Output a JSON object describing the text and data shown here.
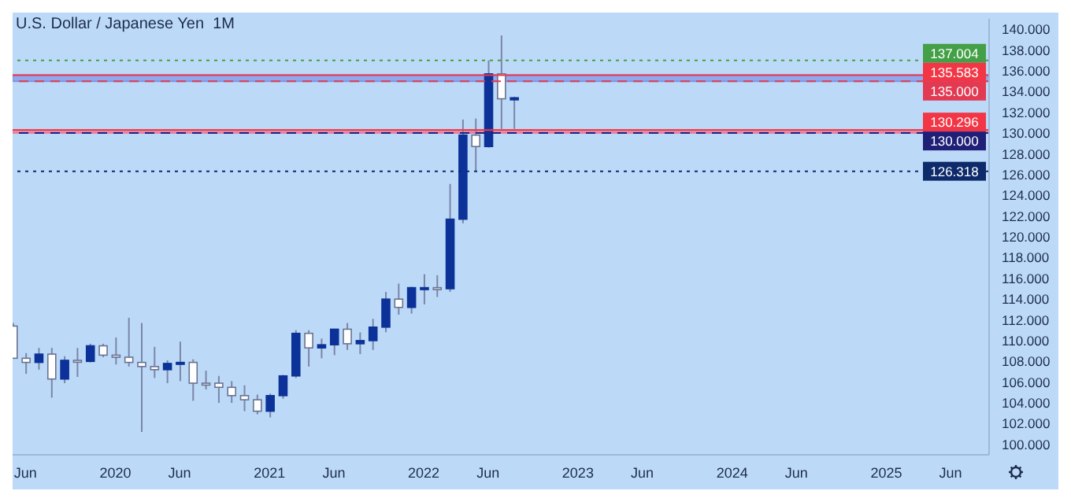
{
  "chart_data": {
    "type": "candlestick",
    "title": "U.S. Dollar / Japanese Yen  1M",
    "x": [
      "2019-05",
      "2019-06",
      "2019-07",
      "2019-08",
      "2019-09",
      "2019-10",
      "2019-11",
      "2019-12",
      "2020-01",
      "2020-02",
      "2020-03",
      "2020-04",
      "2020-05",
      "2020-06",
      "2020-07",
      "2020-08",
      "2020-09",
      "2020-10",
      "2020-11",
      "2020-12",
      "2021-01",
      "2021-02",
      "2021-03",
      "2021-04",
      "2021-05",
      "2021-06",
      "2021-07",
      "2021-08",
      "2021-09",
      "2021-10",
      "2021-11",
      "2021-12",
      "2022-01",
      "2022-02",
      "2022-03",
      "2022-04",
      "2022-05",
      "2022-06",
      "2022-07",
      "2022-08"
    ],
    "ohlc": [
      [
        111.4,
        111.7,
        108.3,
        108.3
      ],
      [
        108.3,
        108.8,
        106.8,
        107.9
      ],
      [
        107.9,
        109.3,
        107.2,
        108.7
      ],
      [
        108.7,
        109.3,
        104.5,
        106.3
      ],
      [
        106.3,
        108.5,
        105.9,
        108.1
      ],
      [
        108.1,
        109.3,
        106.5,
        108.0
      ],
      [
        108.0,
        109.7,
        107.9,
        109.5
      ],
      [
        109.5,
        109.7,
        108.4,
        108.6
      ],
      [
        108.6,
        110.3,
        107.7,
        108.4
      ],
      [
        108.4,
        112.2,
        107.5,
        107.9
      ],
      [
        107.9,
        111.7,
        101.2,
        107.5
      ],
      [
        107.5,
        109.4,
        106.4,
        107.2
      ],
      [
        107.2,
        108.1,
        105.9,
        107.8
      ],
      [
        107.8,
        109.9,
        106.1,
        107.9
      ],
      [
        107.9,
        108.2,
        104.2,
        105.9
      ],
      [
        105.9,
        107.1,
        105.3,
        105.9
      ],
      [
        105.9,
        106.6,
        104.0,
        105.5
      ],
      [
        105.5,
        106.1,
        104.0,
        104.7
      ],
      [
        104.7,
        105.7,
        103.2,
        104.3
      ],
      [
        104.3,
        104.8,
        102.9,
        103.2
      ],
      [
        103.2,
        104.9,
        102.6,
        104.7
      ],
      [
        104.7,
        106.7,
        104.4,
        106.6
      ],
      [
        106.6,
        111.0,
        106.4,
        110.7
      ],
      [
        110.7,
        111.0,
        107.5,
        109.3
      ],
      [
        109.3,
        110.2,
        108.3,
        109.6
      ],
      [
        109.6,
        111.1,
        108.6,
        111.1
      ],
      [
        111.1,
        111.7,
        109.1,
        109.7
      ],
      [
        109.7,
        110.8,
        108.7,
        110.0
      ],
      [
        110.0,
        112.1,
        109.1,
        111.3
      ],
      [
        111.3,
        114.7,
        110.8,
        114.0
      ],
      [
        114.0,
        115.5,
        112.5,
        113.2
      ],
      [
        113.2,
        115.2,
        112.6,
        115.1
      ],
      [
        115.1,
        116.4,
        113.5,
        115.1
      ],
      [
        115.1,
        116.3,
        114.2,
        115.0
      ],
      [
        115.0,
        125.1,
        114.7,
        121.7
      ],
      [
        121.7,
        131.3,
        121.3,
        129.8
      ],
      [
        129.8,
        131.4,
        126.3,
        128.7
      ],
      [
        128.7,
        137.0,
        128.6,
        135.7
      ],
      [
        135.7,
        139.4,
        130.4,
        133.3
      ],
      [
        133.2,
        133.5,
        130.4,
        133.4
      ]
    ],
    "colors": [
      "#ffffff",
      "#ffffff",
      "#0c3299",
      "#ffffff",
      "#0c3299",
      "#ffffff",
      "#0c3299",
      "#ffffff",
      "#ffffff",
      "#ffffff",
      "#ffffff",
      "#ffffff",
      "#0c3299",
      "#0c3299",
      "#ffffff",
      "#ffffff",
      "#ffffff",
      "#ffffff",
      "#ffffff",
      "#ffffff",
      "#0c3299",
      "#0c3299",
      "#0c3299",
      "#ffffff",
      "#0c3299",
      "#0c3299",
      "#ffffff",
      "#0c3299",
      "#0c3299",
      "#0c3299",
      "#ffffff",
      "#0c3299",
      "#0c3299",
      "#ffffff",
      "#0c3299",
      "#0c3299",
      "#ffffff",
      "#0c3299",
      "#ffffff",
      "#0c3299"
    ],
    "xlim": [
      "2019-05",
      "2025-09"
    ],
    "xticks": [
      {
        "value": "2019-06",
        "label": "Jun"
      },
      {
        "value": "2020-01",
        "label": "2020"
      },
      {
        "value": "2020-06",
        "label": "Jun"
      },
      {
        "value": "2021-01",
        "label": "2021"
      },
      {
        "value": "2021-06",
        "label": "Jun"
      },
      {
        "value": "2022-01",
        "label": "2022"
      },
      {
        "value": "2022-06",
        "label": "Jun"
      },
      {
        "value": "2023-01",
        "label": "2023"
      },
      {
        "value": "2023-06",
        "label": "Jun"
      },
      {
        "value": "2024-01",
        "label": "2024"
      },
      {
        "value": "2024-06",
        "label": "Jun"
      },
      {
        "value": "2025-01",
        "label": "2025"
      },
      {
        "value": "2025-06",
        "label": "Jun"
      }
    ],
    "ylim": [
      99,
      141
    ],
    "yticks": [
      {
        "value": 100,
        "label": "100.000"
      },
      {
        "value": 102,
        "label": "102.000"
      },
      {
        "value": 104,
        "label": "104.000"
      },
      {
        "value": 106,
        "label": "106.000"
      },
      {
        "value": 108,
        "label": "108.000"
      },
      {
        "value": 110,
        "label": "110.000"
      },
      {
        "value": 112,
        "label": "112.000"
      },
      {
        "value": 114,
        "label": "114.000"
      },
      {
        "value": 116,
        "label": "116.000"
      },
      {
        "value": 118,
        "label": "118.000"
      },
      {
        "value": 120,
        "label": "120.000"
      },
      {
        "value": 122,
        "label": "122.000"
      },
      {
        "value": 124,
        "label": "124.000"
      },
      {
        "value": 126,
        "label": "126.000"
      },
      {
        "value": 128,
        "label": "128.000"
      },
      {
        "value": 130,
        "label": "130.000"
      },
      {
        "value": 132,
        "label": "132.000"
      },
      {
        "value": 134,
        "label": "134.000"
      },
      {
        "value": 136,
        "label": "136.000"
      },
      {
        "value": 138,
        "label": "138.000"
      },
      {
        "value": 140,
        "label": "140.000"
      }
    ],
    "bands": [
      {
        "axis": "y",
        "from": 135,
        "to": 135.583,
        "color": "#7d94e8"
      },
      {
        "axis": "y",
        "from": 130,
        "to": 130.296,
        "color": "#e57f9f"
      }
    ],
    "ref_lines": [
      {
        "axis": "y",
        "value": 137.004,
        "label": "137.004",
        "color": "#43a047",
        "line_style": "dotted"
      },
      {
        "axis": "y",
        "value": 135.583,
        "label": "135.583",
        "color": "#f23645",
        "line_style": "solid"
      },
      {
        "axis": "y",
        "value": 135,
        "label": "135.000",
        "color": "#e23a52",
        "line_style": "dashed"
      },
      {
        "axis": "y",
        "value": 130.296,
        "label": "130.296",
        "color": "#f23645",
        "line_style": "solid"
      },
      {
        "axis": "y",
        "value": 130,
        "label": "130.000",
        "color": "#1f1f78",
        "line_style": "dashed"
      },
      {
        "axis": "y",
        "value": 126.318,
        "label": "126.318",
        "color": "#0d2a6b",
        "line_style": "dotted"
      }
    ],
    "grid": false,
    "legend": false
  }
}
